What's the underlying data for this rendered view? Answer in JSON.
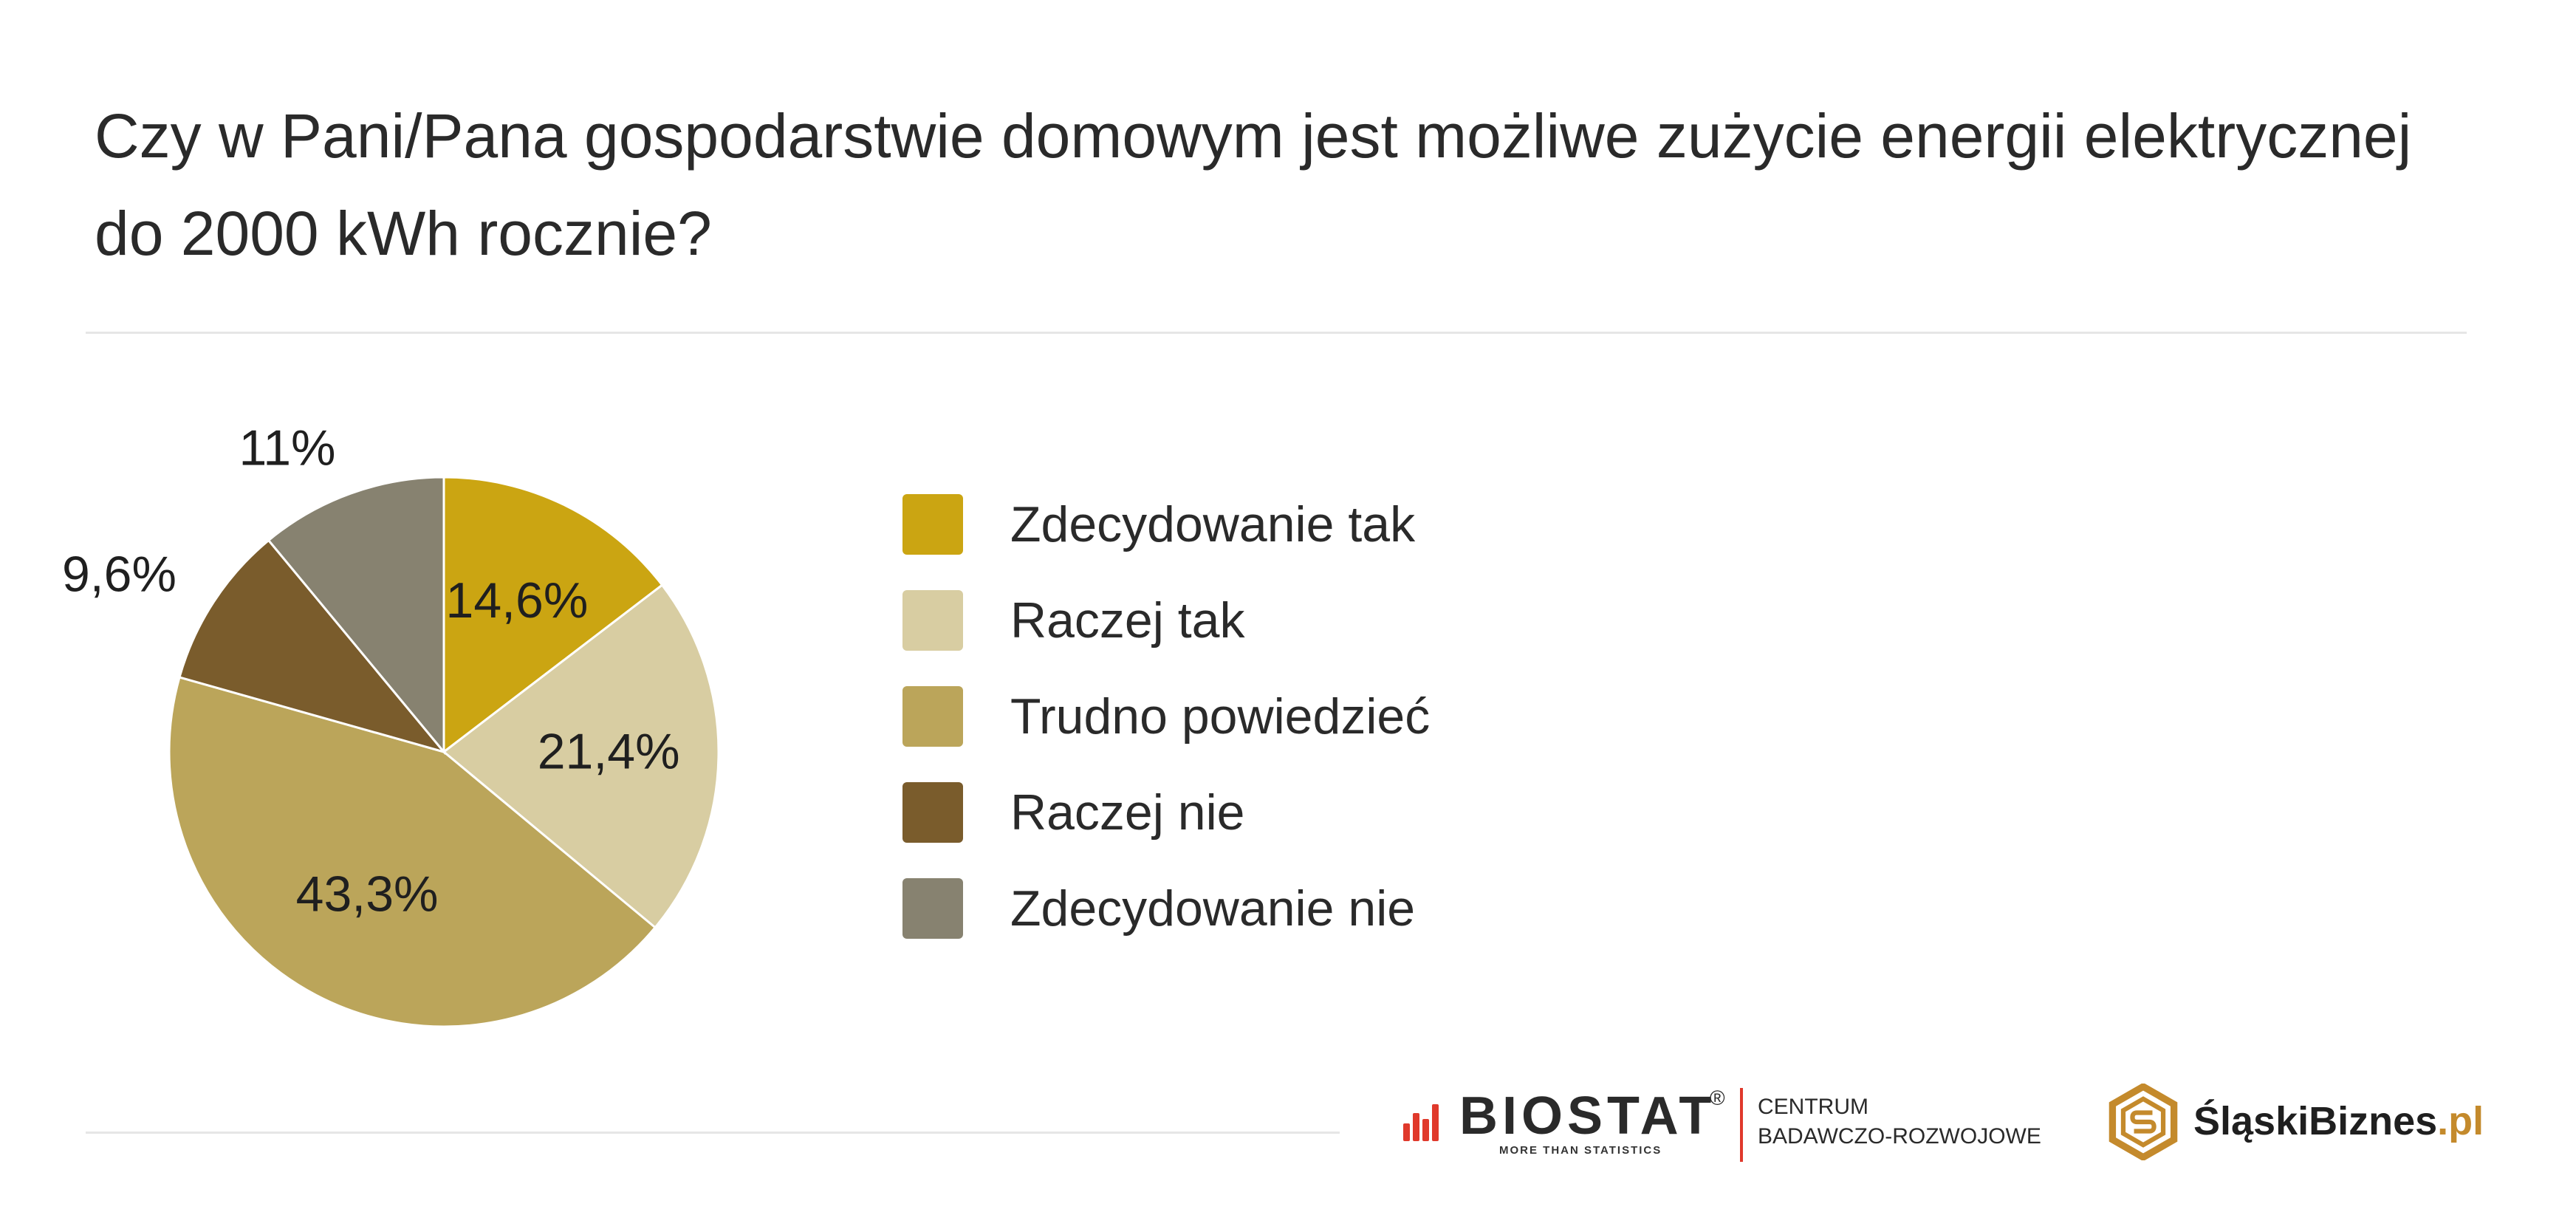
{
  "title_lines": [
    "Czy w Pani/Pana gospodarstwie domowym jest możliwe zużycie energii elektrycznej",
    "do 2000 kWh rocznie?"
  ],
  "chart_data": {
    "type": "pie",
    "title": "Czy w Pani/Pana gospodarstwie domowym jest możliwe zużycie energii elektrycznej do 2000 kWh rocznie?",
    "legend_placement": "right",
    "slices": [
      {
        "label": "Zdecydowanie tak",
        "value": 14.6,
        "display": "14,6%",
        "color": "#CBA512"
      },
      {
        "label": "Raczej tak",
        "value": 21.4,
        "display": "21,4%",
        "color": "#D8CDA2"
      },
      {
        "label": "Trudno powiedzieć",
        "value": 43.3,
        "display": "43,3%",
        "color": "#BBA55A"
      },
      {
        "label": "Raczej nie",
        "value": 9.6,
        "display": "9,6%",
        "color": "#7A5C2C"
      },
      {
        "label": "Zdecydowanie nie",
        "value": 11,
        "display": "11%",
        "color": "#878270"
      }
    ]
  },
  "logos": {
    "biostat_name": "BIOSTAT",
    "biostat_registered": "®",
    "biostat_tagline": "MORE THAN STATISTICS",
    "centrum_line1": "CENTRUM",
    "centrum_line2": "BADAWCZO-ROZWOJOWE",
    "slaski_name": "ŚląskiBiznes",
    "slaski_suffix": ".pl",
    "biostat_color": "#E0392B",
    "slaski_color": "#C48A2C"
  }
}
